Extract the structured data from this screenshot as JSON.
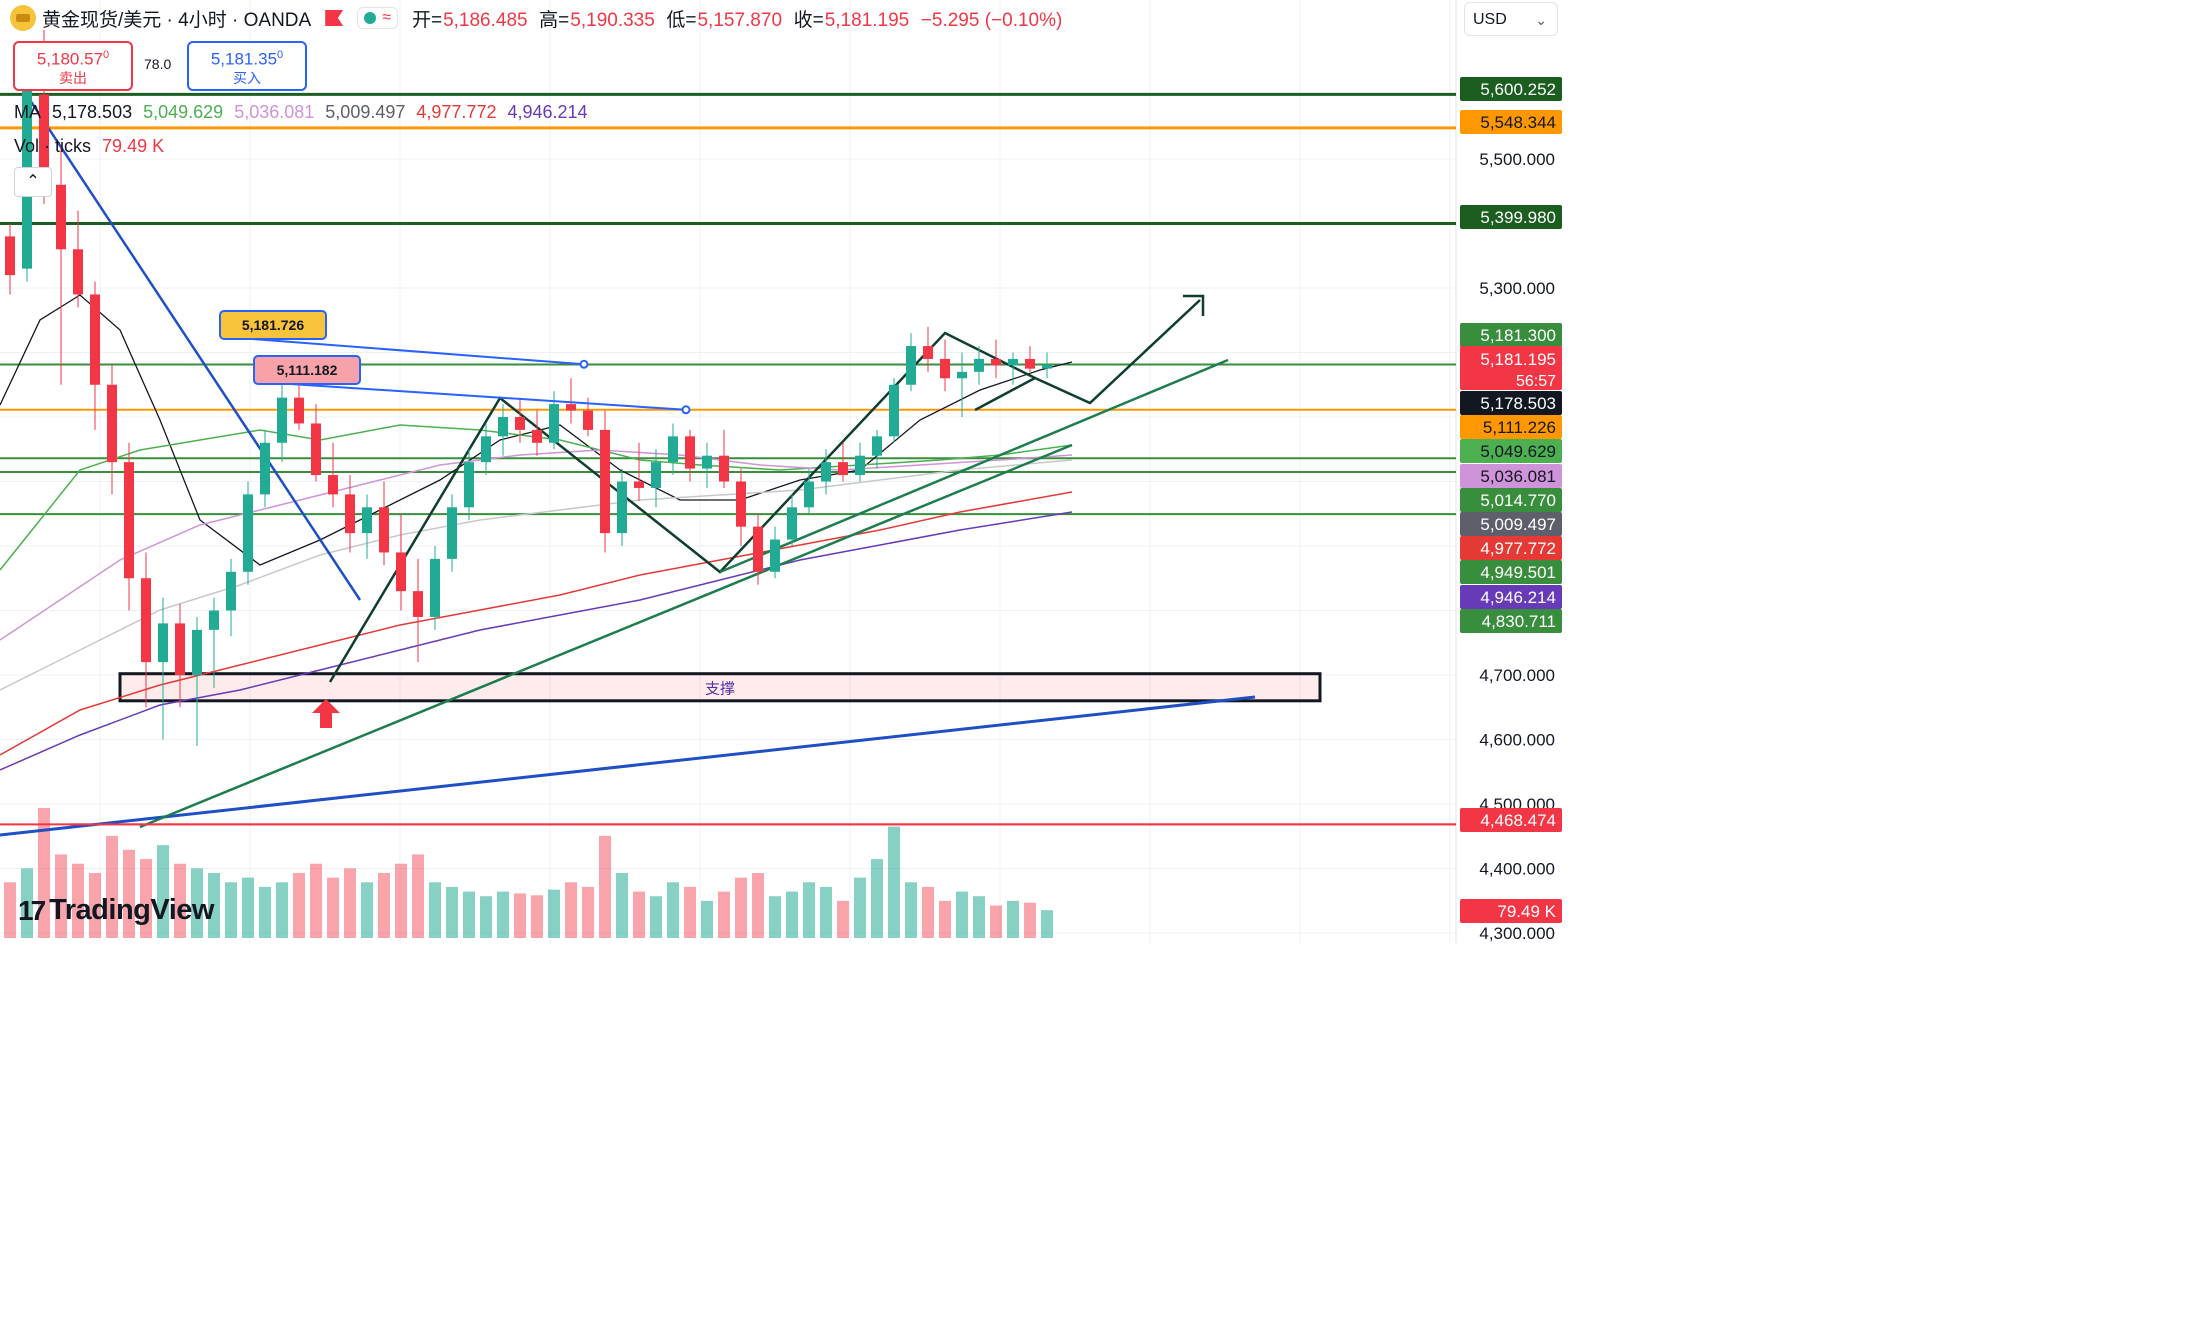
{
  "header": {
    "symbol": "黄金现货/美元 · 4小时 · OANDA",
    "ohlc": [
      {
        "label": "开=",
        "value": "5,186.485"
      },
      {
        "label": "高=",
        "value": "5,190.335"
      },
      {
        "label": "低=",
        "value": "5,157.870"
      },
      {
        "label": "收=",
        "value": "5,181.195"
      }
    ],
    "change": "−5.295 (−0.10%)",
    "wave_icon": "≈"
  },
  "trade": {
    "sell_price": "5,180.57",
    "sell_sup": "0",
    "sell_label": "卖出",
    "spread": "78.0",
    "buy_price": "5,181.35",
    "buy_sup": "0",
    "buy_label": "买入"
  },
  "currency": "USD",
  "legend": {
    "ma_label": "MA",
    "ma_values": [
      {
        "value": "5,178.503",
        "color": "#131722"
      },
      {
        "value": "5,049.629",
        "color": "#4caf50"
      },
      {
        "value": "5,036.081",
        "color": "#ce93d8"
      },
      {
        "value": "5,009.497",
        "color": "#5d606b"
      },
      {
        "value": "4,977.772",
        "color": "#e53935"
      },
      {
        "value": "4,946.214",
        "color": "#673ab7"
      }
    ],
    "vol_label": "Vol · ticks",
    "vol_value": "79.49 K"
  },
  "brand": {
    "name": "TradingView",
    "mark": "17"
  },
  "colors": {
    "up": "#22ab94",
    "down": "#f23645",
    "level_green": "#1b5e20",
    "level_orange": "#ff9800",
    "level_red": "#f23645",
    "trend_blue": "#1e4fc4",
    "drawing_dark": "#0f3d2e"
  },
  "chart_data": {
    "type": "candlestick",
    "price_axis": {
      "ticks": [
        {
          "value": 4300,
          "label": "4,300.000"
        },
        {
          "value": 4400,
          "label": "4,400.000"
        },
        {
          "value": 4500,
          "label": "4,500.000"
        },
        {
          "value": 4600,
          "label": "4,600.000"
        },
        {
          "value": 4700,
          "label": "4,700.000"
        },
        {
          "value": 5300,
          "label": "5,300.000"
        },
        {
          "value": 5500,
          "label": "5,500.000"
        }
      ]
    },
    "levels": [
      {
        "value": 5600.252,
        "label": "5,600.252",
        "color": "#1b5e20",
        "line": true,
        "width": 3
      },
      {
        "value": 5548.344,
        "label": "5,548.344",
        "color": "#ff9800",
        "line": true,
        "width": 3
      },
      {
        "value": 5399.98,
        "label": "5,399.980",
        "color": "#1b5e20",
        "line": true,
        "width": 3
      },
      {
        "value": 5181.3,
        "label": "5,181.300",
        "color": "#388e3c",
        "line": true,
        "width": 2
      },
      {
        "value": 5181.195,
        "label": "5,181.195",
        "sub": "56:57",
        "color": "#f23645",
        "line": false
      },
      {
        "value": 5178.503,
        "label": "5,178.503",
        "color": "#131722",
        "line": false
      },
      {
        "value": 5111.226,
        "label": "5,111.226",
        "color": "#ff9800",
        "line": true,
        "width": 2
      },
      {
        "value": 5049.629,
        "label": "5,049.629",
        "color": "#4caf50",
        "line": false
      },
      {
        "value": 5036.081,
        "label": "5,036.081",
        "color": "#ce93d8",
        "line": true,
        "width": 2,
        "linecolor": "#388e3c"
      },
      {
        "value": 5014.77,
        "label": "5,014.770",
        "color": "#388e3c",
        "line": true,
        "width": 2
      },
      {
        "value": 5009.497,
        "label": "5,009.497",
        "color": "#5d606b",
        "line": false
      },
      {
        "value": 4977.772,
        "label": "4,977.772",
        "color": "#e53935",
        "line": false
      },
      {
        "value": 4949.501,
        "label": "4,949.501",
        "color": "#388e3c",
        "line": true,
        "width": 2
      },
      {
        "value": 4946.214,
        "label": "4,946.214",
        "color": "#673ab7",
        "line": false
      },
      {
        "value": 4830.711,
        "label": "4,830.711",
        "color": "#388e3c",
        "line": false
      },
      {
        "value": 4468.474,
        "label": "4,468.474",
        "color": "#f23645",
        "line": true,
        "width": 2
      },
      {
        "value": 0,
        "label": "79.49 K",
        "color": "#f23645",
        "line": false,
        "volume": true
      }
    ],
    "support_zone": {
      "label": "支撑",
      "top": 4702,
      "bottom": 4660,
      "start": 18,
      "end": 216
    },
    "callouts": [
      {
        "text": "5,181.726",
        "price": 5181.726,
        "bar": 34,
        "fill": "#f6c33b"
      },
      {
        "text": "5,111.182",
        "price": 5111.182,
        "bar": 40,
        "fill": "#f7a1a8"
      }
    ],
    "candles": [
      [
        5380,
        5400,
        5290,
        5320
      ],
      [
        5330,
        5660,
        5310,
        5610
      ],
      [
        5600,
        5700,
        5430,
        5460
      ],
      [
        5460,
        5520,
        5150,
        5360
      ],
      [
        5360,
        5420,
        5270,
        5290
      ],
      [
        5290,
        5310,
        5080,
        5150
      ],
      [
        5150,
        5180,
        4980,
        5030
      ],
      [
        5030,
        5060,
        4800,
        4850
      ],
      [
        4850,
        4890,
        4650,
        4720
      ],
      [
        4720,
        4820,
        4600,
        4780
      ],
      [
        4780,
        4810,
        4650,
        4700
      ],
      [
        4700,
        4790,
        4590,
        4770
      ],
      [
        4770,
        4820,
        4680,
        4800
      ],
      [
        4800,
        4880,
        4760,
        4860
      ],
      [
        4860,
        5000,
        4840,
        4980
      ],
      [
        4980,
        5080,
        4960,
        5060
      ],
      [
        5060,
        5150,
        5030,
        5130
      ],
      [
        5130,
        5160,
        5080,
        5090
      ],
      [
        5090,
        5120,
        5000,
        5010
      ],
      [
        5010,
        5060,
        4960,
        4980
      ],
      [
        4980,
        5010,
        4890,
        4920
      ],
      [
        4920,
        4980,
        4880,
        4960
      ],
      [
        4960,
        5000,
        4870,
        4890
      ],
      [
        4890,
        4950,
        4800,
        4830
      ],
      [
        4830,
        4880,
        4720,
        4790
      ],
      [
        4790,
        4900,
        4770,
        4880
      ],
      [
        4880,
        4980,
        4860,
        4960
      ],
      [
        4960,
        5050,
        4940,
        5030
      ],
      [
        5030,
        5090,
        5010,
        5070
      ],
      [
        5070,
        5120,
        5040,
        5100
      ],
      [
        5100,
        5130,
        5060,
        5080
      ],
      [
        5080,
        5110,
        5040,
        5060
      ],
      [
        5060,
        5140,
        5050,
        5120
      ],
      [
        5120,
        5160,
        5090,
        5110
      ],
      [
        5110,
        5130,
        5070,
        5080
      ],
      [
        5080,
        5110,
        4890,
        4920
      ],
      [
        4920,
        5020,
        4900,
        5000
      ],
      [
        5000,
        5060,
        4970,
        4990
      ],
      [
        4990,
        5050,
        4960,
        5030
      ],
      [
        5030,
        5090,
        5010,
        5070
      ],
      [
        5070,
        5080,
        5000,
        5020
      ],
      [
        5020,
        5060,
        4990,
        5040
      ],
      [
        5040,
        5080,
        4990,
        5000
      ],
      [
        5000,
        5020,
        4900,
        4930
      ],
      [
        4930,
        4950,
        4840,
        4860
      ],
      [
        4860,
        4930,
        4850,
        4910
      ],
      [
        4910,
        4980,
        4900,
        4960
      ],
      [
        4960,
        5020,
        4950,
        5000
      ],
      [
        5000,
        5050,
        4980,
        5030
      ],
      [
        5030,
        5060,
        5000,
        5010
      ],
      [
        5010,
        5060,
        5000,
        5040
      ],
      [
        5040,
        5080,
        5020,
        5070
      ],
      [
        5070,
        5160,
        5060,
        5150
      ],
      [
        5150,
        5230,
        5140,
        5210
      ],
      [
        5210,
        5240,
        5170,
        5190
      ],
      [
        5190,
        5220,
        5140,
        5160
      ],
      [
        5160,
        5200,
        5100,
        5170
      ],
      [
        5170,
        5210,
        5150,
        5190
      ],
      [
        5190,
        5220,
        5160,
        5180
      ],
      [
        5180,
        5200,
        5150,
        5190
      ],
      [
        5190,
        5210,
        5170,
        5175
      ],
      [
        5175,
        5200,
        5160,
        5181
      ]
    ],
    "volumes": [
      60,
      75,
      140,
      90,
      80,
      70,
      110,
      95,
      85,
      100,
      80,
      75,
      70,
      60,
      65,
      55,
      60,
      70,
      80,
      65,
      75,
      60,
      70,
      80,
      90,
      60,
      55,
      50,
      45,
      50,
      48,
      46,
      52,
      60,
      55,
      110,
      70,
      50,
      45,
      60,
      55,
      40,
      50,
      65,
      70,
      45,
      50,
      60,
      55,
      40,
      65,
      85,
      120,
      60,
      55,
      40,
      50,
      45,
      35,
      40,
      38,
      30
    ]
  }
}
